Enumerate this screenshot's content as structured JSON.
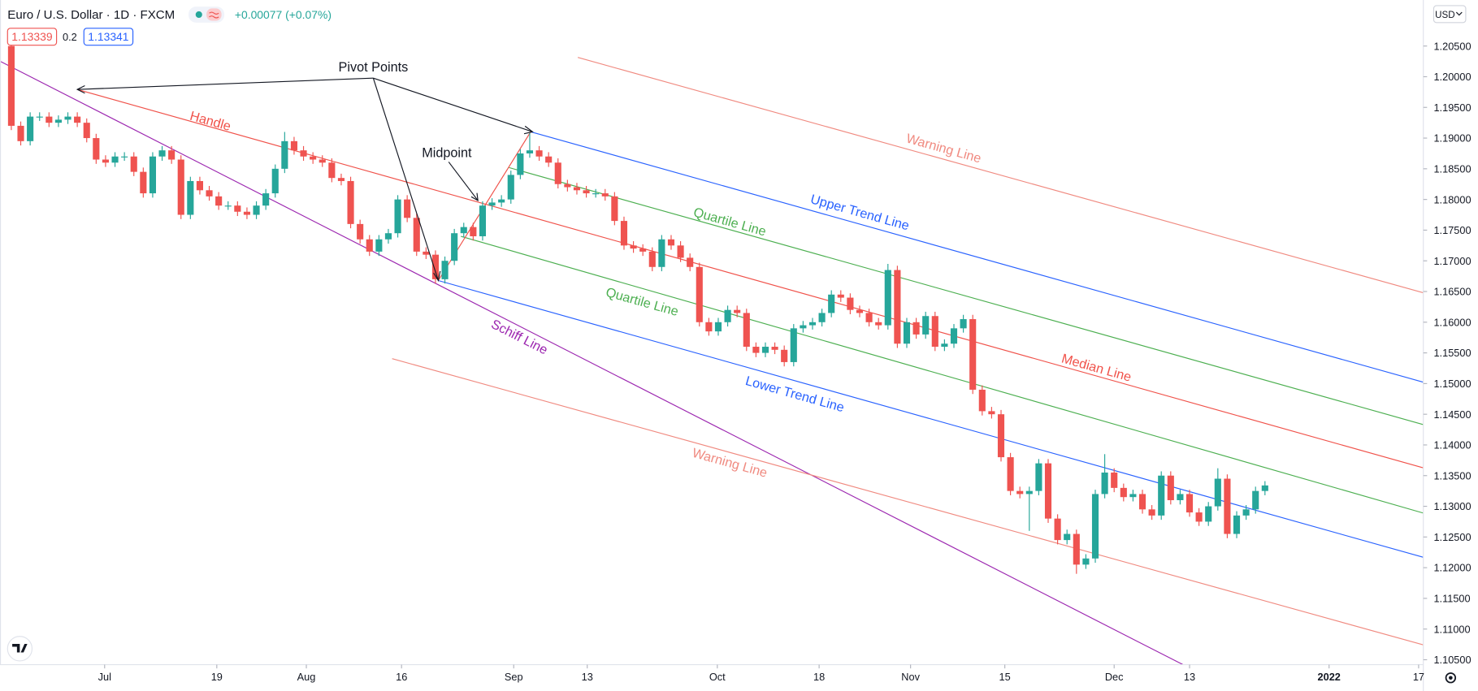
{
  "header": {
    "symbol": "Euro / U.S. Dollar · 1D · FXCM",
    "change": "+0.00077 (+0.07%)",
    "bid": "1.13339",
    "spread": "0.2",
    "ask": "1.13341",
    "currency": "USD"
  },
  "chart_data": {
    "type": "candlestick",
    "up_color": "#26a69a",
    "down_color": "#ef5350",
    "open": [
      1.205,
      1.192,
      1.1895,
      1.1935,
      1.1935,
      1.1925,
      1.193,
      1.1935,
      1.1925,
      1.19,
      1.1865,
      1.186,
      1.187,
      1.187,
      1.1845,
      1.181,
      1.187,
      1.188,
      1.1865,
      1.1775,
      1.183,
      1.1815,
      1.1805,
      1.179,
      1.179,
      1.178,
      1.1775,
      1.179,
      1.181,
      1.185,
      1.1895,
      1.188,
      1.187,
      1.1865,
      1.186,
      1.1835,
      1.183,
      1.176,
      1.1735,
      1.1715,
      1.1735,
      1.1745,
      1.18,
      1.177,
      1.1715,
      1.171,
      1.167,
      1.17,
      1.1745,
      1.1755,
      1.174,
      1.179,
      1.1795,
      1.18,
      1.184,
      1.1875,
      1.188,
      1.187,
      1.186,
      1.1825,
      1.182,
      1.1815,
      1.181,
      1.181,
      1.1805,
      1.1765,
      1.1725,
      1.172,
      1.1715,
      1.169,
      1.1735,
      1.1725,
      1.1705,
      1.169,
      1.16,
      1.1585,
      1.16,
      1.162,
      1.1615,
      1.156,
      1.155,
      1.156,
      1.1555,
      1.1535,
      1.159,
      1.1595,
      1.16,
      1.1615,
      1.1645,
      1.164,
      1.162,
      1.1615,
      1.16,
      1.1595,
      1.1685,
      1.1565,
      1.16,
      1.158,
      1.161,
      1.156,
      1.1565,
      1.159,
      1.1605,
      1.149,
      1.1455,
      1.145,
      1.138,
      1.1325,
      1.132,
      1.1325,
      1.137,
      1.128,
      1.1245,
      1.1255,
      1.1205,
      1.1215,
      1.132,
      1.1355,
      1.133,
      1.1315,
      1.132,
      1.1295,
      1.1285,
      1.135,
      1.131,
      1.132,
      1.129,
      1.1275,
      1.13,
      1.1345,
      1.1255,
      1.1285,
      1.1295,
      1.1325
    ],
    "high": [
      1.2057,
      1.1927,
      1.1942,
      1.1942,
      1.1942,
      1.1937,
      1.1942,
      1.1942,
      1.1932,
      1.1907,
      1.1872,
      1.1877,
      1.1877,
      1.1877,
      1.1852,
      1.1877,
      1.1887,
      1.1887,
      1.1872,
      1.1837,
      1.1837,
      1.1822,
      1.1812,
      1.1797,
      1.1797,
      1.1787,
      1.1797,
      1.1817,
      1.1857,
      1.191,
      1.1902,
      1.1887,
      1.1877,
      1.1872,
      1.1867,
      1.1842,
      1.1837,
      1.1767,
      1.1742,
      1.1742,
      1.1752,
      1.1807,
      1.1807,
      1.1777,
      1.1722,
      1.1717,
      1.1707,
      1.1752,
      1.1762,
      1.1762,
      1.1797,
      1.1802,
      1.1807,
      1.1847,
      1.1882,
      1.1908,
      1.1887,
      1.1877,
      1.1867,
      1.1832,
      1.1827,
      1.1822,
      1.1817,
      1.1817,
      1.1812,
      1.1772,
      1.1732,
      1.1727,
      1.1722,
      1.1742,
      1.1742,
      1.1732,
      1.1712,
      1.1697,
      1.1607,
      1.1607,
      1.1627,
      1.1627,
      1.1622,
      1.1567,
      1.1567,
      1.1567,
      1.1562,
      1.1597,
      1.1602,
      1.1607,
      1.1622,
      1.1652,
      1.1652,
      1.1647,
      1.1627,
      1.1622,
      1.1607,
      1.1695,
      1.1692,
      1.1607,
      1.1607,
      1.1617,
      1.1617,
      1.1572,
      1.1597,
      1.1612,
      1.1612,
      1.1497,
      1.1462,
      1.1457,
      1.1387,
      1.1332,
      1.1332,
      1.1377,
      1.1377,
      1.1287,
      1.1262,
      1.1262,
      1.1222,
      1.1327,
      1.1385,
      1.1362,
      1.1337,
      1.1327,
      1.1327,
      1.1302,
      1.1357,
      1.1357,
      1.1327,
      1.1327,
      1.1297,
      1.1307,
      1.1362,
      1.1352,
      1.1292,
      1.1302,
      1.1332,
      1.1341
    ],
    "low": [
      1.1913,
      1.1888,
      1.1888,
      1.1928,
      1.1918,
      1.1918,
      1.1923,
      1.1918,
      1.1893,
      1.1858,
      1.1853,
      1.1853,
      1.1863,
      1.1838,
      1.1803,
      1.1803,
      1.1863,
      1.1858,
      1.1768,
      1.1768,
      1.1808,
      1.1798,
      1.1783,
      1.1783,
      1.1773,
      1.1768,
      1.1768,
      1.1783,
      1.1803,
      1.1843,
      1.1873,
      1.1863,
      1.1858,
      1.1853,
      1.1828,
      1.1823,
      1.1753,
      1.1728,
      1.1708,
      1.1708,
      1.1728,
      1.1738,
      1.1763,
      1.1708,
      1.1703,
      1.1663,
      1.1663,
      1.1693,
      1.1738,
      1.1733,
      1.1733,
      1.1783,
      1.1788,
      1.1793,
      1.1833,
      1.1868,
      1.1863,
      1.1853,
      1.1818,
      1.1813,
      1.1808,
      1.1803,
      1.1803,
      1.1798,
      1.1758,
      1.1718,
      1.1713,
      1.1708,
      1.1683,
      1.1683,
      1.1718,
      1.1698,
      1.1683,
      1.1593,
      1.1578,
      1.1578,
      1.1593,
      1.1608,
      1.1553,
      1.1543,
      1.1543,
      1.1548,
      1.1528,
      1.1528,
      1.1583,
      1.1588,
      1.1593,
      1.1608,
      1.1633,
      1.1613,
      1.1608,
      1.1593,
      1.1588,
      1.1588,
      1.1558,
      1.1558,
      1.1573,
      1.1573,
      1.1553,
      1.1553,
      1.1558,
      1.1583,
      1.1483,
      1.1448,
      1.1443,
      1.1373,
      1.1318,
      1.1313,
      1.126,
      1.1318,
      1.1273,
      1.1238,
      1.1238,
      1.119,
      1.1198,
      1.1208,
      1.1313,
      1.1323,
      1.1308,
      1.1308,
      1.1288,
      1.1278,
      1.1278,
      1.1303,
      1.1303,
      1.1283,
      1.1268,
      1.1268,
      1.1293,
      1.1248,
      1.1248,
      1.1278,
      1.1288,
      1.1318
    ],
    "close": [
      1.192,
      1.1895,
      1.1935,
      1.1935,
      1.1925,
      1.193,
      1.1935,
      1.1925,
      1.19,
      1.1865,
      1.186,
      1.187,
      1.187,
      1.1845,
      1.181,
      1.187,
      1.188,
      1.1865,
      1.1775,
      1.183,
      1.1815,
      1.1805,
      1.179,
      1.179,
      1.178,
      1.1775,
      1.179,
      1.181,
      1.185,
      1.1895,
      1.188,
      1.187,
      1.1865,
      1.186,
      1.1835,
      1.183,
      1.176,
      1.1735,
      1.1715,
      1.1735,
      1.1745,
      1.18,
      1.177,
      1.1715,
      1.171,
      1.167,
      1.17,
      1.1745,
      1.1755,
      1.174,
      1.179,
      1.1795,
      1.18,
      1.184,
      1.1875,
      1.188,
      1.187,
      1.186,
      1.1825,
      1.182,
      1.1815,
      1.181,
      1.181,
      1.1805,
      1.1765,
      1.1725,
      1.172,
      1.1715,
      1.169,
      1.1735,
      1.1725,
      1.1705,
      1.169,
      1.16,
      1.1585,
      1.16,
      1.162,
      1.1615,
      1.156,
      1.155,
      1.156,
      1.1555,
      1.1535,
      1.159,
      1.1595,
      1.16,
      1.1615,
      1.1645,
      1.164,
      1.162,
      1.1615,
      1.16,
      1.1595,
      1.1685,
      1.1565,
      1.16,
      1.158,
      1.161,
      1.156,
      1.1565,
      1.159,
      1.1605,
      1.149,
      1.1455,
      1.145,
      1.138,
      1.1325,
      1.132,
      1.1325,
      1.137,
      1.128,
      1.1245,
      1.1255,
      1.1205,
      1.1215,
      1.132,
      1.1355,
      1.133,
      1.1315,
      1.132,
      1.1295,
      1.1285,
      1.135,
      1.131,
      1.132,
      1.129,
      1.1275,
      1.13,
      1.1345,
      1.1255,
      1.1285,
      1.1295,
      1.1325,
      1.1334
    ],
    "xlim": [
      -1.2,
      149.8
    ],
    "xticks": [
      {
        "value": 9.9,
        "label": "Jul"
      },
      {
        "value": 21.8,
        "label": "19"
      },
      {
        "value": 31.3,
        "label": "Aug"
      },
      {
        "value": 41.4,
        "label": "16"
      },
      {
        "value": 53.3,
        "label": "Sep"
      },
      {
        "value": 61.1,
        "label": "13"
      },
      {
        "value": 74.9,
        "label": "Oct"
      },
      {
        "value": 85.7,
        "label": "18"
      },
      {
        "value": 95.4,
        "label": "Nov"
      },
      {
        "value": 105.4,
        "label": "15"
      },
      {
        "value": 117,
        "label": "Dec"
      },
      {
        "value": 125,
        "label": "13"
      },
      {
        "value": 139.8,
        "label": "2022"
      },
      {
        "value": 149.3,
        "label": "17"
      }
    ],
    "ylim": [
      1.1042,
      1.2125
    ],
    "yticks": [
      {
        "value": 1.105,
        "label": "1.10500"
      },
      {
        "value": 1.11,
        "label": "1.11000"
      },
      {
        "value": 1.115,
        "label": "1.11500"
      },
      {
        "value": 1.12,
        "label": "1.12000"
      },
      {
        "value": 1.125,
        "label": "1.12500"
      },
      {
        "value": 1.13,
        "label": "1.13000"
      },
      {
        "value": 1.135,
        "label": "1.13500"
      },
      {
        "value": 1.14,
        "label": "1.14000"
      },
      {
        "value": 1.145,
        "label": "1.14500"
      },
      {
        "value": 1.15,
        "label": "1.15000"
      },
      {
        "value": 1.155,
        "label": "1.15500"
      },
      {
        "value": 1.16,
        "label": "1.16000"
      },
      {
        "value": 1.165,
        "label": "1.16500"
      },
      {
        "value": 1.17,
        "label": "1.17000"
      },
      {
        "value": 1.175,
        "label": "1.17500"
      },
      {
        "value": 1.18,
        "label": "1.18000"
      },
      {
        "value": 1.185,
        "label": "1.18500"
      },
      {
        "value": 1.19,
        "label": "1.19000"
      },
      {
        "value": 1.195,
        "label": "1.19500"
      },
      {
        "value": 1.2,
        "label": "1.20000"
      },
      {
        "value": 1.205,
        "label": "1.20500"
      }
    ],
    "annotations": [
      "Pivot Points",
      "Midpoint",
      "Handle",
      "Warning Line",
      "Upper Trend Line",
      "Quartile Line",
      "Quartile Line",
      "Median Line",
      "Lower Trend Line",
      "Schiff Line",
      "Warning Line"
    ]
  }
}
